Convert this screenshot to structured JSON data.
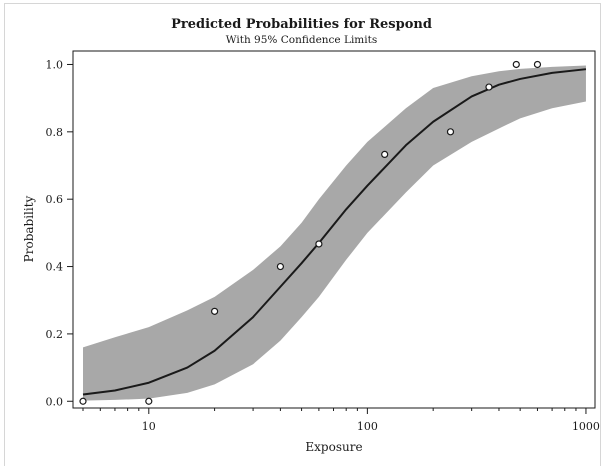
{
  "chart_data": {
    "type": "line",
    "title": "Predicted Probabilities for Respond",
    "subtitle": "With 95% Confidence Limits",
    "xlabel": "Exposure",
    "ylabel": "Probability",
    "x_scale": "log",
    "xlim": [
      4.5,
      1100
    ],
    "ylim": [
      -0.02,
      1.04
    ],
    "x_ticks": [
      10,
      100,
      1000
    ],
    "x_tick_labels": [
      "10",
      "100",
      "1000"
    ],
    "y_ticks": [
      0.0,
      0.2,
      0.4,
      0.6,
      0.8,
      1.0
    ],
    "y_tick_labels": [
      "0.0",
      "0.2",
      "0.4",
      "0.6",
      "0.8",
      "1.0"
    ],
    "grid": false,
    "legend": "none",
    "colors": {
      "band": "#a8a8a8",
      "line": "#1a1a1a",
      "points": "#1a1a1a"
    },
    "observed_points": [
      {
        "x": 5,
        "y": 0.0
      },
      {
        "x": 10,
        "y": 0.0
      },
      {
        "x": 20,
        "y": 0.267
      },
      {
        "x": 40,
        "y": 0.4
      },
      {
        "x": 60,
        "y": 0.467
      },
      {
        "x": 120,
        "y": 0.733
      },
      {
        "x": 240,
        "y": 0.8
      },
      {
        "x": 360,
        "y": 0.933
      },
      {
        "x": 480,
        "y": 1.0
      },
      {
        "x": 600,
        "y": 1.0
      }
    ],
    "predicted": {
      "x": [
        5,
        7,
        10,
        15,
        20,
        30,
        40,
        50,
        60,
        80,
        100,
        150,
        200,
        300,
        400,
        500,
        700,
        1000
      ],
      "y": [
        0.02,
        0.032,
        0.055,
        0.1,
        0.15,
        0.25,
        0.34,
        0.41,
        0.47,
        0.57,
        0.64,
        0.76,
        0.83,
        0.905,
        0.94,
        0.957,
        0.975,
        0.986
      ]
    },
    "lower_limit": {
      "x": [
        5,
        7,
        10,
        15,
        20,
        30,
        40,
        50,
        60,
        80,
        100,
        150,
        200,
        300,
        400,
        500,
        700,
        1000
      ],
      "y": [
        0.002,
        0.004,
        0.008,
        0.025,
        0.05,
        0.11,
        0.18,
        0.25,
        0.31,
        0.42,
        0.5,
        0.62,
        0.7,
        0.77,
        0.81,
        0.84,
        0.87,
        0.89
      ]
    },
    "upper_limit": {
      "x": [
        5,
        7,
        10,
        15,
        20,
        30,
        40,
        50,
        60,
        80,
        100,
        150,
        200,
        300,
        400,
        500,
        700,
        1000
      ],
      "y": [
        0.16,
        0.19,
        0.22,
        0.27,
        0.31,
        0.39,
        0.46,
        0.53,
        0.6,
        0.7,
        0.77,
        0.87,
        0.93,
        0.965,
        0.98,
        0.987,
        0.993,
        0.997
      ]
    }
  }
}
